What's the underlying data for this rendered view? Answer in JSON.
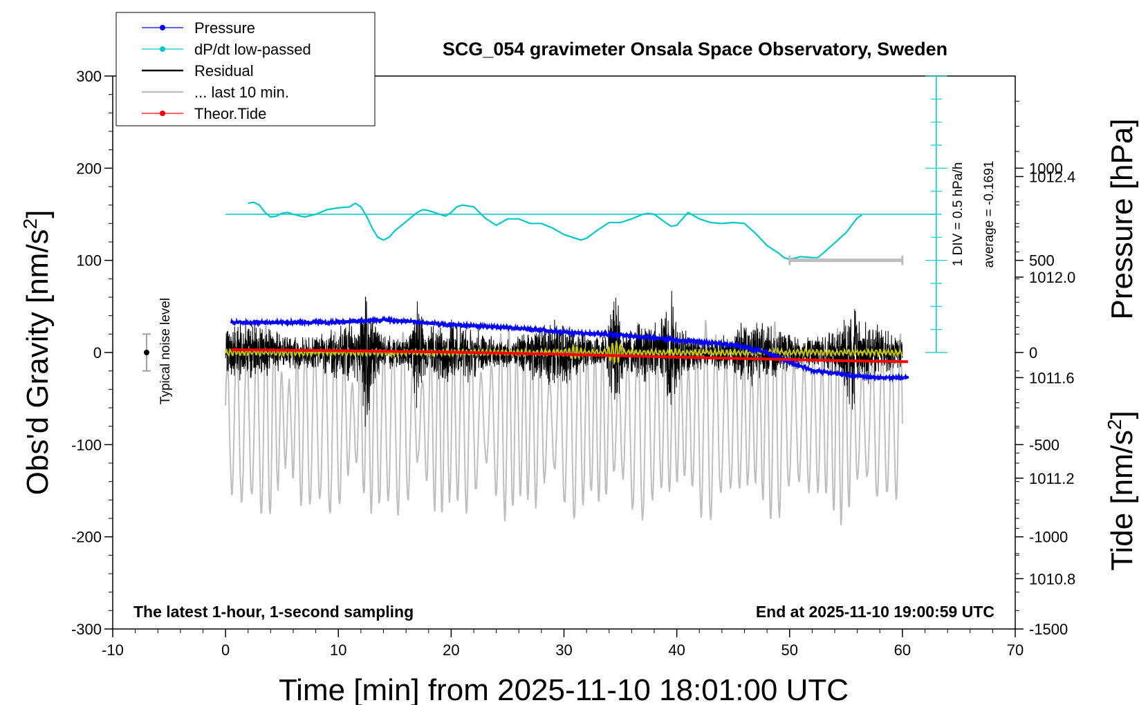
{
  "chart_data": {
    "type": "line",
    "title": "SCG_054 gravimeter Onsala Space Observatory, Sweden",
    "xlabel": "Time [min] from 2025-11-10 18:01:00 UTC",
    "ylabel_left_main": "Obs'd Gravity [nm/s",
    "ylabel_sup": "2",
    "ylabel_left_end": "]",
    "ylabel_right_pressure": "Pressure [hPa]",
    "ylabel_right_tide_main": "Tide [nm/s",
    "ylabel_right_tide_end": "]",
    "xlim": [
      -10,
      70
    ],
    "ylim": [
      -300,
      300
    ],
    "pressure_ylim": [
      1010.6,
      1012.8
    ],
    "tide_ylim": [
      -1500,
      1500
    ],
    "x_ticks": [
      "-10",
      "0",
      "10",
      "20",
      "30",
      "40",
      "50",
      "60",
      "70"
    ],
    "y_ticks": [
      "300",
      "200",
      "100",
      "0",
      "-100",
      "-200",
      "-300"
    ],
    "pressure_ticks": [
      "1012.4",
      "1012.0",
      "1011.6",
      "1011.2",
      "1010.8"
    ],
    "tide_ticks": [
      "1000",
      "500",
      "0",
      "-500",
      "-1000",
      "-1500"
    ],
    "legend": {
      "position": "top-left",
      "items": [
        {
          "label": "Pressure",
          "color": "#0000ff",
          "marker": "dot"
        },
        {
          "label": "dP/dt low-passed",
          "color": "#00c8c8",
          "marker": "dot"
        },
        {
          "label": "Residual",
          "color": "#000000",
          "marker": "none"
        },
        {
          "label": "... last 10 min.",
          "color": "#bebebe",
          "marker": "none"
        },
        {
          "label": "Theor.Tide",
          "color": "#ff0000",
          "marker": "dot"
        }
      ]
    },
    "annotations": {
      "bottom_left": "The latest 1-hour, 1-second sampling",
      "bottom_right": "End at 2025-11-10 19:00:59 UTC",
      "noise_label": "Typical noise level",
      "div_label": "1 DIV = 0.5 hPa/h",
      "average_label": "average = -0.1691"
    },
    "series": [
      {
        "name": "Pressure",
        "color": "#0000ff",
        "axis": "pressure",
        "x": [
          0.5,
          5,
          10,
          14,
          20,
          25,
          30,
          35,
          40,
          45,
          48,
          50,
          52,
          55,
          58,
          60.5
        ],
        "values": [
          1011.82,
          1011.82,
          1011.82,
          1011.83,
          1011.81,
          1011.8,
          1011.78,
          1011.77,
          1011.75,
          1011.73,
          1011.7,
          1011.66,
          1011.63,
          1011.61,
          1011.6,
          1011.6
        ]
      },
      {
        "name": "dP/dt low-passed",
        "color": "#00c8c8",
        "axis": "gravity",
        "x": [
          2,
          2.5,
          3,
          3.5,
          4,
          4.5,
          5,
          5.5,
          6,
          7,
          8,
          9,
          10,
          11,
          11.5,
          12,
          12.5,
          13,
          13.5,
          14,
          14.5,
          15,
          16,
          17,
          17.5,
          18,
          19,
          19.5,
          20,
          20.5,
          21,
          22,
          23,
          24,
          25,
          26,
          27,
          28,
          29,
          30,
          31,
          31.5,
          32,
          33,
          34,
          35,
          36,
          37,
          37.5,
          38,
          39,
          39.5,
          40,
          40.5,
          41,
          42,
          43,
          44,
          45,
          46,
          47,
          48,
          49,
          49.5,
          50,
          51,
          52,
          52.5,
          53,
          54,
          55,
          56,
          56.5
        ],
        "values": [
          162,
          163,
          160,
          152,
          147,
          148,
          151,
          152,
          150,
          147,
          150,
          155,
          157,
          158,
          162,
          158,
          148,
          135,
          125,
          122,
          125,
          132,
          142,
          152,
          155,
          154,
          150,
          148,
          152,
          158,
          160,
          158,
          146,
          138,
          145,
          145,
          140,
          140,
          135,
          128,
          124,
          122,
          124,
          133,
          141,
          141,
          145,
          150,
          151,
          150,
          141,
          137,
          138,
          145,
          152,
          145,
          141,
          140,
          141,
          140,
          129,
          116,
          108,
          103,
          101,
          104,
          103,
          103,
          108,
          119,
          130,
          146,
          150
        ]
      },
      {
        "name": "Theor.Tide",
        "color": "#ff0000",
        "axis": "tide",
        "x": [
          0.5,
          10,
          20,
          30,
          40,
          50,
          55,
          60.5
        ],
        "values": [
          15,
          10,
          2,
          -10,
          -25,
          -38,
          -45,
          -50
        ]
      }
    ],
    "residual": {
      "color": "#000000",
      "x_start": 0,
      "x_end": 60,
      "envelope_peak": 120
    },
    "residual_lowpass": {
      "color": "#c8c800"
    },
    "last_10_min": {
      "color": "#bebebe",
      "x_start": 0,
      "x_end": 60,
      "amplitude_nm_s2": 1000,
      "bar_x": [
        50,
        60
      ],
      "bar_y": 500
    },
    "noise_level": {
      "x": -7,
      "center": 0,
      "half_range": 20
    },
    "rate_axis": {
      "x": 63
    }
  }
}
